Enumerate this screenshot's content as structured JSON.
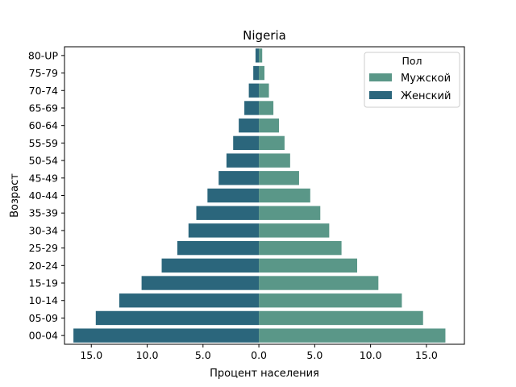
{
  "chart_data": {
    "type": "bar",
    "orientation": "horizontal",
    "title": "Nigeria",
    "xlabel": "Процент населения",
    "ylabel": "Возраст",
    "xlim": [
      -17.4,
      18.4
    ],
    "x_ticks": [
      -15,
      -10,
      -5,
      0,
      5,
      10,
      15
    ],
    "x_tick_labels": [
      "15.0",
      "10.0",
      "5.0",
      "0.0",
      "5.0",
      "10.0",
      "15.0"
    ],
    "categories": [
      "80-UP",
      "75-79",
      "70-74",
      "65-69",
      "60-64",
      "55-59",
      "50-54",
      "45-49",
      "40-44",
      "35-39",
      "30-34",
      "25-29",
      "20-24",
      "15-19",
      "10-14",
      "05-09",
      "00-04"
    ],
    "series": [
      {
        "name": "Мужской",
        "color": "#5a9788",
        "values": [
          0.3,
          0.5,
          0.9,
          1.3,
          1.8,
          2.3,
          2.8,
          3.6,
          4.6,
          5.5,
          6.3,
          7.4,
          8.8,
          10.7,
          12.8,
          14.7,
          16.7
        ]
      },
      {
        "name": "Женский",
        "color": "#2b667c",
        "values": [
          -0.3,
          -0.5,
          -0.9,
          -1.3,
          -1.8,
          -2.3,
          -2.9,
          -3.6,
          -4.6,
          -5.6,
          -6.3,
          -7.3,
          -8.7,
          -10.5,
          -12.5,
          -14.6,
          -16.6
        ]
      }
    ],
    "legend": {
      "title": "Пол",
      "position": "top-right"
    },
    "grid": false
  }
}
